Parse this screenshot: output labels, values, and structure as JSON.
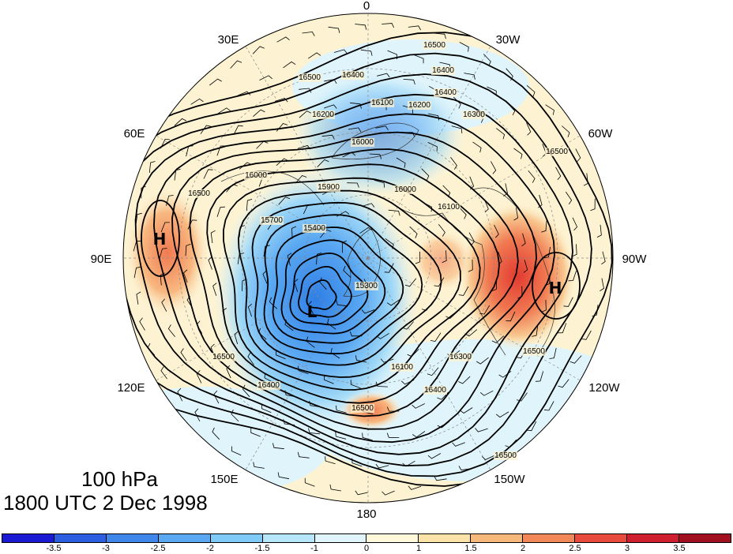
{
  "map": {
    "projection": "north polar stereographic",
    "longitude_labels": [
      "0",
      "30W",
      "60W",
      "90W",
      "120W",
      "150W",
      "180",
      "150E",
      "120E",
      "90E",
      "60E",
      "30E"
    ],
    "contour_labels": [
      "16500",
      "16500",
      "16400",
      "16400",
      "16300",
      "16200",
      "16200",
      "16100",
      "16000",
      "15900",
      "16400",
      "16500",
      "15700",
      "16000",
      "16100",
      "15400",
      "15300",
      "16100",
      "16300",
      "16400",
      "16500",
      "16500",
      "16500",
      "16500",
      "16500",
      "16400",
      "16000"
    ],
    "centers": [
      {
        "type": "H",
        "label": "H"
      },
      {
        "type": "H",
        "label": "H"
      },
      {
        "type": "L",
        "label": "L"
      }
    ]
  },
  "caption": {
    "level": "100 hPa",
    "time": "1800 UTC 2 Dec 1998"
  },
  "colorbar": {
    "colors": [
      "#1a1ad2",
      "#2b5fe0",
      "#3f86ea",
      "#5aa8f2",
      "#7fcaf7",
      "#b5e6fa",
      "#dff4fb",
      "#fdf8da",
      "#fbe2a8",
      "#f7b87c",
      "#f28858",
      "#e84b3c",
      "#cf1f2e",
      "#a0101e"
    ],
    "tick_labels": [
      "-3.5",
      "-3",
      "-2.5",
      "-2",
      "-1.5",
      "-1",
      "0",
      "1",
      "1.5",
      "2",
      "2.5",
      "3",
      "3.5"
    ]
  }
}
